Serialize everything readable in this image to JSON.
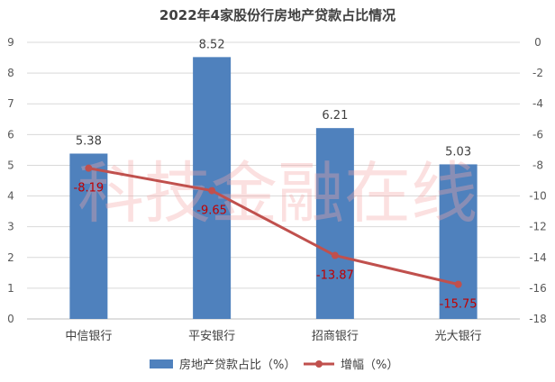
{
  "chart_data": {
    "type": "bar",
    "title": "2022年4家股份行房地产贷款占比情况",
    "categories": [
      "中信银行",
      "平安银行",
      "招商银行",
      "光大银行"
    ],
    "y_left": {
      "min": 0,
      "max": 9,
      "ticks": [
        0,
        1,
        2,
        3,
        4,
        5,
        6,
        7,
        8,
        9
      ]
    },
    "y_right": {
      "min": -18,
      "max": 0,
      "ticks": [
        0,
        -2,
        -4,
        -6,
        -8,
        -10,
        -12,
        -14,
        -16,
        -18
      ]
    },
    "series": [
      {
        "name": "房地产贷款占比（%）",
        "kind": "bar",
        "axis": "left",
        "color": "#4f81bd",
        "values": [
          5.38,
          8.52,
          6.21,
          5.03
        ],
        "labels": [
          "5.38",
          "8.52",
          "6.21",
          "5.03"
        ]
      },
      {
        "name": "增幅（%）",
        "kind": "line",
        "axis": "right",
        "color": "#c0504d",
        "values": [
          -8.19,
          -9.65,
          -13.87,
          -15.75
        ],
        "labels": [
          "-8.19",
          "-9.65",
          "-13.87",
          "-15.75"
        ]
      }
    ],
    "grid": true,
    "legend": "bottom"
  },
  "watermark": "科技金融在线"
}
